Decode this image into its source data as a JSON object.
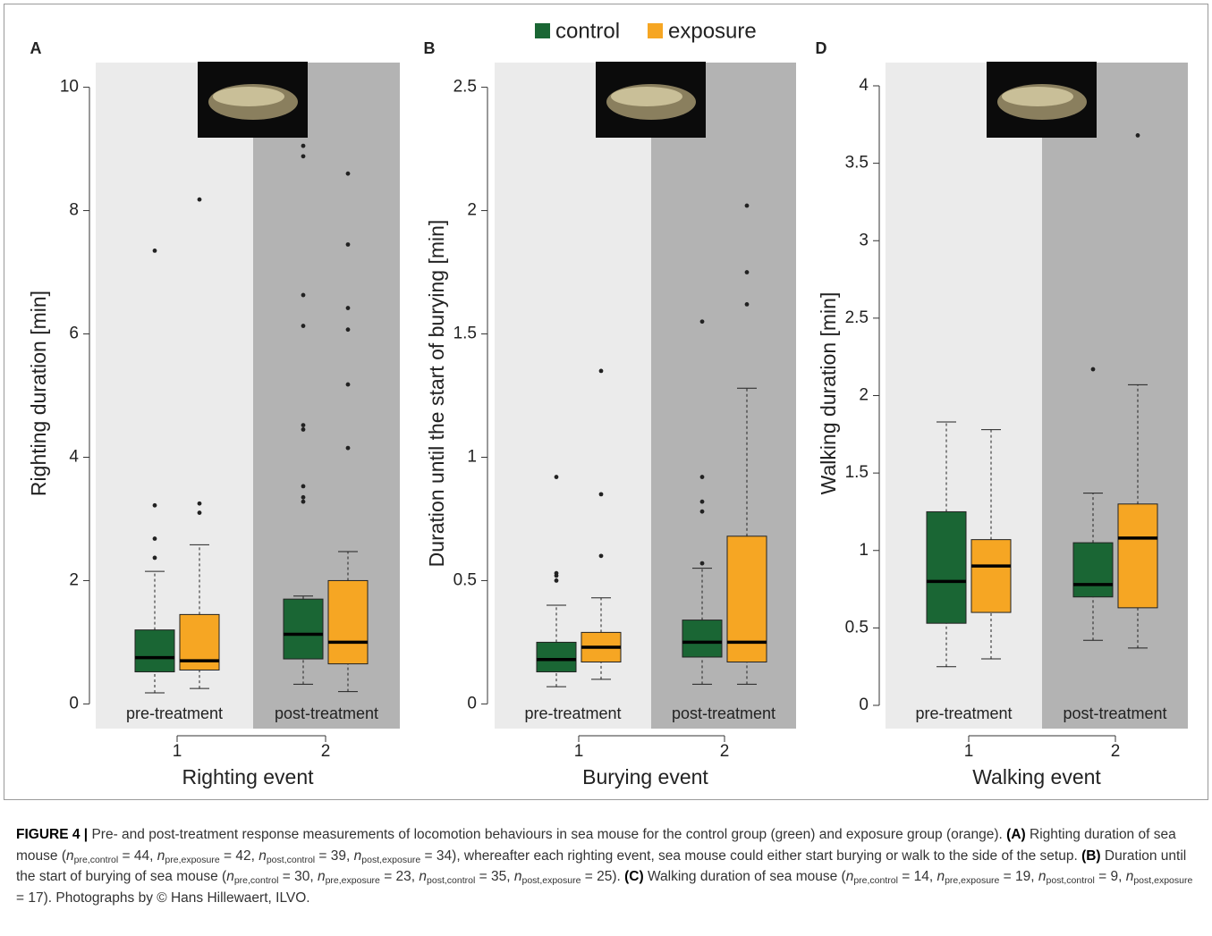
{
  "chart_data": [
    {
      "type": "boxplot",
      "label": "A",
      "xlabel": "Righting event",
      "ylabel": "Righting duration [min]",
      "categories": [
        "1",
        "2"
      ],
      "regions": [
        {
          "label": "pre-treatment",
          "color": "#ebebeb"
        },
        {
          "label": "post-treatment",
          "color": "#b3b3b3"
        }
      ],
      "ylim": [
        -0.4,
        10.4
      ],
      "yticks": [
        0,
        2,
        4,
        6,
        8,
        10
      ],
      "series": [
        {
          "name": "control",
          "color": "#1a6634",
          "values": [
            {
              "whislo": 0.18,
              "q1": 0.52,
              "med": 0.75,
              "q3": 1.2,
              "whishi": 2.15,
              "fliers": [
                2.37,
                2.68,
                3.22,
                7.35
              ]
            },
            {
              "whislo": 0.32,
              "q1": 0.73,
              "med": 1.13,
              "q3": 1.7,
              "whishi": 1.75,
              "fliers": [
                3.28,
                3.35,
                3.53,
                4.45,
                4.52,
                6.13,
                6.63,
                8.88,
                9.05
              ]
            }
          ]
        },
        {
          "name": "exposure",
          "color": "#f6a623",
          "values": [
            {
              "whislo": 0.25,
              "q1": 0.55,
              "med": 0.7,
              "q3": 1.45,
              "whishi": 2.58,
              "fliers": [
                3.1,
                3.25,
                8.18
              ]
            },
            {
              "whislo": 0.2,
              "q1": 0.65,
              "med": 1.0,
              "q3": 2.0,
              "whishi": 2.47,
              "fliers": [
                4.15,
                5.18,
                6.07,
                6.42,
                7.45,
                8.6
              ]
            }
          ]
        }
      ]
    },
    {
      "type": "boxplot",
      "label": "B",
      "xlabel": "Burying event",
      "ylabel": "Duration until the start of burying [min]",
      "categories": [
        "1",
        "2"
      ],
      "regions": [
        {
          "label": "pre-treatment",
          "color": "#ebebeb"
        },
        {
          "label": "post-treatment",
          "color": "#b3b3b3"
        }
      ],
      "ylim": [
        -0.1,
        2.6
      ],
      "yticks": [
        0,
        0.5,
        1,
        1.5,
        2,
        2.5
      ],
      "series": [
        {
          "color": "#1a6634",
          "values": [
            {
              "whislo": 0.07,
              "q1": 0.13,
              "med": 0.18,
              "q3": 0.25,
              "whishi": 0.4,
              "fliers": [
                0.5,
                0.52,
                0.53,
                0.92
              ]
            },
            {
              "whislo": 0.08,
              "q1": 0.19,
              "med": 0.25,
              "q3": 0.34,
              "whishi": 0.55,
              "fliers": [
                0.57,
                0.78,
                0.82,
                0.92,
                1.55
              ]
            }
          ]
        },
        {
          "color": "#f6a623",
          "values": [
            {
              "whislo": 0.1,
              "q1": 0.17,
              "med": 0.23,
              "q3": 0.29,
              "whishi": 0.43,
              "fliers": [
                0.6,
                0.85,
                1.35
              ]
            },
            {
              "whislo": 0.08,
              "q1": 0.17,
              "med": 0.25,
              "q3": 0.68,
              "whishi": 1.28,
              "fliers": [
                1.62,
                1.75,
                2.02
              ]
            }
          ]
        }
      ]
    },
    {
      "type": "boxplot",
      "label": "D",
      "xlabel": "Walking event",
      "ylabel": "Walking duration [min]",
      "categories": [
        "1",
        "2"
      ],
      "regions": [
        {
          "label": "pre-treatment",
          "color": "#ebebeb"
        },
        {
          "label": "post-treatment",
          "color": "#b3b3b3"
        }
      ],
      "ylim": [
        -0.15,
        4.15
      ],
      "yticks": [
        0,
        0.5,
        1,
        1.5,
        2,
        2.5,
        3,
        3.5,
        4
      ],
      "series": [
        {
          "color": "#1a6634",
          "values": [
            {
              "whislo": 0.25,
              "q1": 0.53,
              "med": 0.8,
              "q3": 1.25,
              "whishi": 1.83,
              "fliers": []
            },
            {
              "whislo": 0.42,
              "q1": 0.7,
              "med": 0.78,
              "q3": 1.05,
              "whishi": 1.37,
              "fliers": [
                2.17
              ]
            }
          ]
        },
        {
          "color": "#f6a623",
          "values": [
            {
              "whislo": 0.3,
              "q1": 0.6,
              "med": 0.9,
              "q3": 1.07,
              "whishi": 1.78,
              "fliers": []
            },
            {
              "whislo": 0.37,
              "q1": 0.63,
              "med": 1.08,
              "q3": 1.3,
              "whishi": 2.07,
              "fliers": [
                3.68
              ]
            }
          ]
        }
      ]
    }
  ],
  "caption": [
    {
      "b": "FIGURE 4 |"
    },
    {
      "t": " Pre- and post-treatment response measurements of locomotion behaviours in sea mouse for the control group (green) and exposure group (orange). "
    },
    {
      "b": "(A)"
    },
    {
      "t": " Righting duration of sea mouse ("
    },
    {
      "i": "n"
    },
    {
      "sub": "pre,control"
    },
    {
      "t": " = 44, "
    },
    {
      "i": "n"
    },
    {
      "sub": "pre,exposure"
    },
    {
      "t": " = 42, "
    },
    {
      "i": "n"
    },
    {
      "sub": "post,control"
    },
    {
      "t": " = 39, "
    },
    {
      "i": "n"
    },
    {
      "sub": "post,exposure"
    },
    {
      "t": " = 34), whereafter each righting event, sea mouse could either start burying or walk to the side of the setup. "
    },
    {
      "b": "(B)"
    },
    {
      "t": " Duration until the start of burying of sea mouse ("
    },
    {
      "i": "n"
    },
    {
      "sub": "pre,control"
    },
    {
      "t": " = 30, "
    },
    {
      "i": "n"
    },
    {
      "sub": "pre,exposure"
    },
    {
      "t": " = 23, "
    },
    {
      "i": "n"
    },
    {
      "sub": "post,control"
    },
    {
      "t": " = 35, "
    },
    {
      "i": "n"
    },
    {
      "sub": "post,exposure"
    },
    {
      "t": " = 25). "
    },
    {
      "b": "(C)"
    },
    {
      "t": " Walking duration of sea mouse ("
    },
    {
      "i": "n"
    },
    {
      "sub": "pre,control"
    },
    {
      "t": " = 14, "
    },
    {
      "i": "n"
    },
    {
      "sub": "pre,exposure"
    },
    {
      "t": " = 19, "
    },
    {
      "i": "n"
    },
    {
      "sub": "post,control"
    },
    {
      "t": " = 9, "
    },
    {
      "i": "n"
    },
    {
      "sub": "post,exposure"
    },
    {
      "t": " = 17). Photographs by © Hans Hillewaert, ILVO."
    }
  ]
}
